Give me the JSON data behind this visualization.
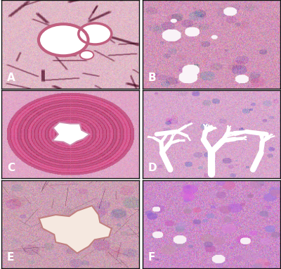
{
  "figure_width": 4.0,
  "figure_height": 3.82,
  "dpi": 100,
  "background_color": "#ffffff",
  "border_color": "#222222",
  "labels": [
    "A",
    "B",
    "C",
    "D",
    "E",
    "F"
  ],
  "label_color": "#ffffff",
  "label_fontsize": 11,
  "label_fontweight": "bold",
  "grid_rows": 3,
  "grid_cols": 2,
  "panel_bg_A": "#e8b8c8",
  "panel_bg_B": "#d4a0b8",
  "panel_bg_C": "#cc88b0",
  "panel_bg_D": "#c880a8",
  "panel_bg_E": "#d09898",
  "panel_bg_F": "#cc88b8"
}
